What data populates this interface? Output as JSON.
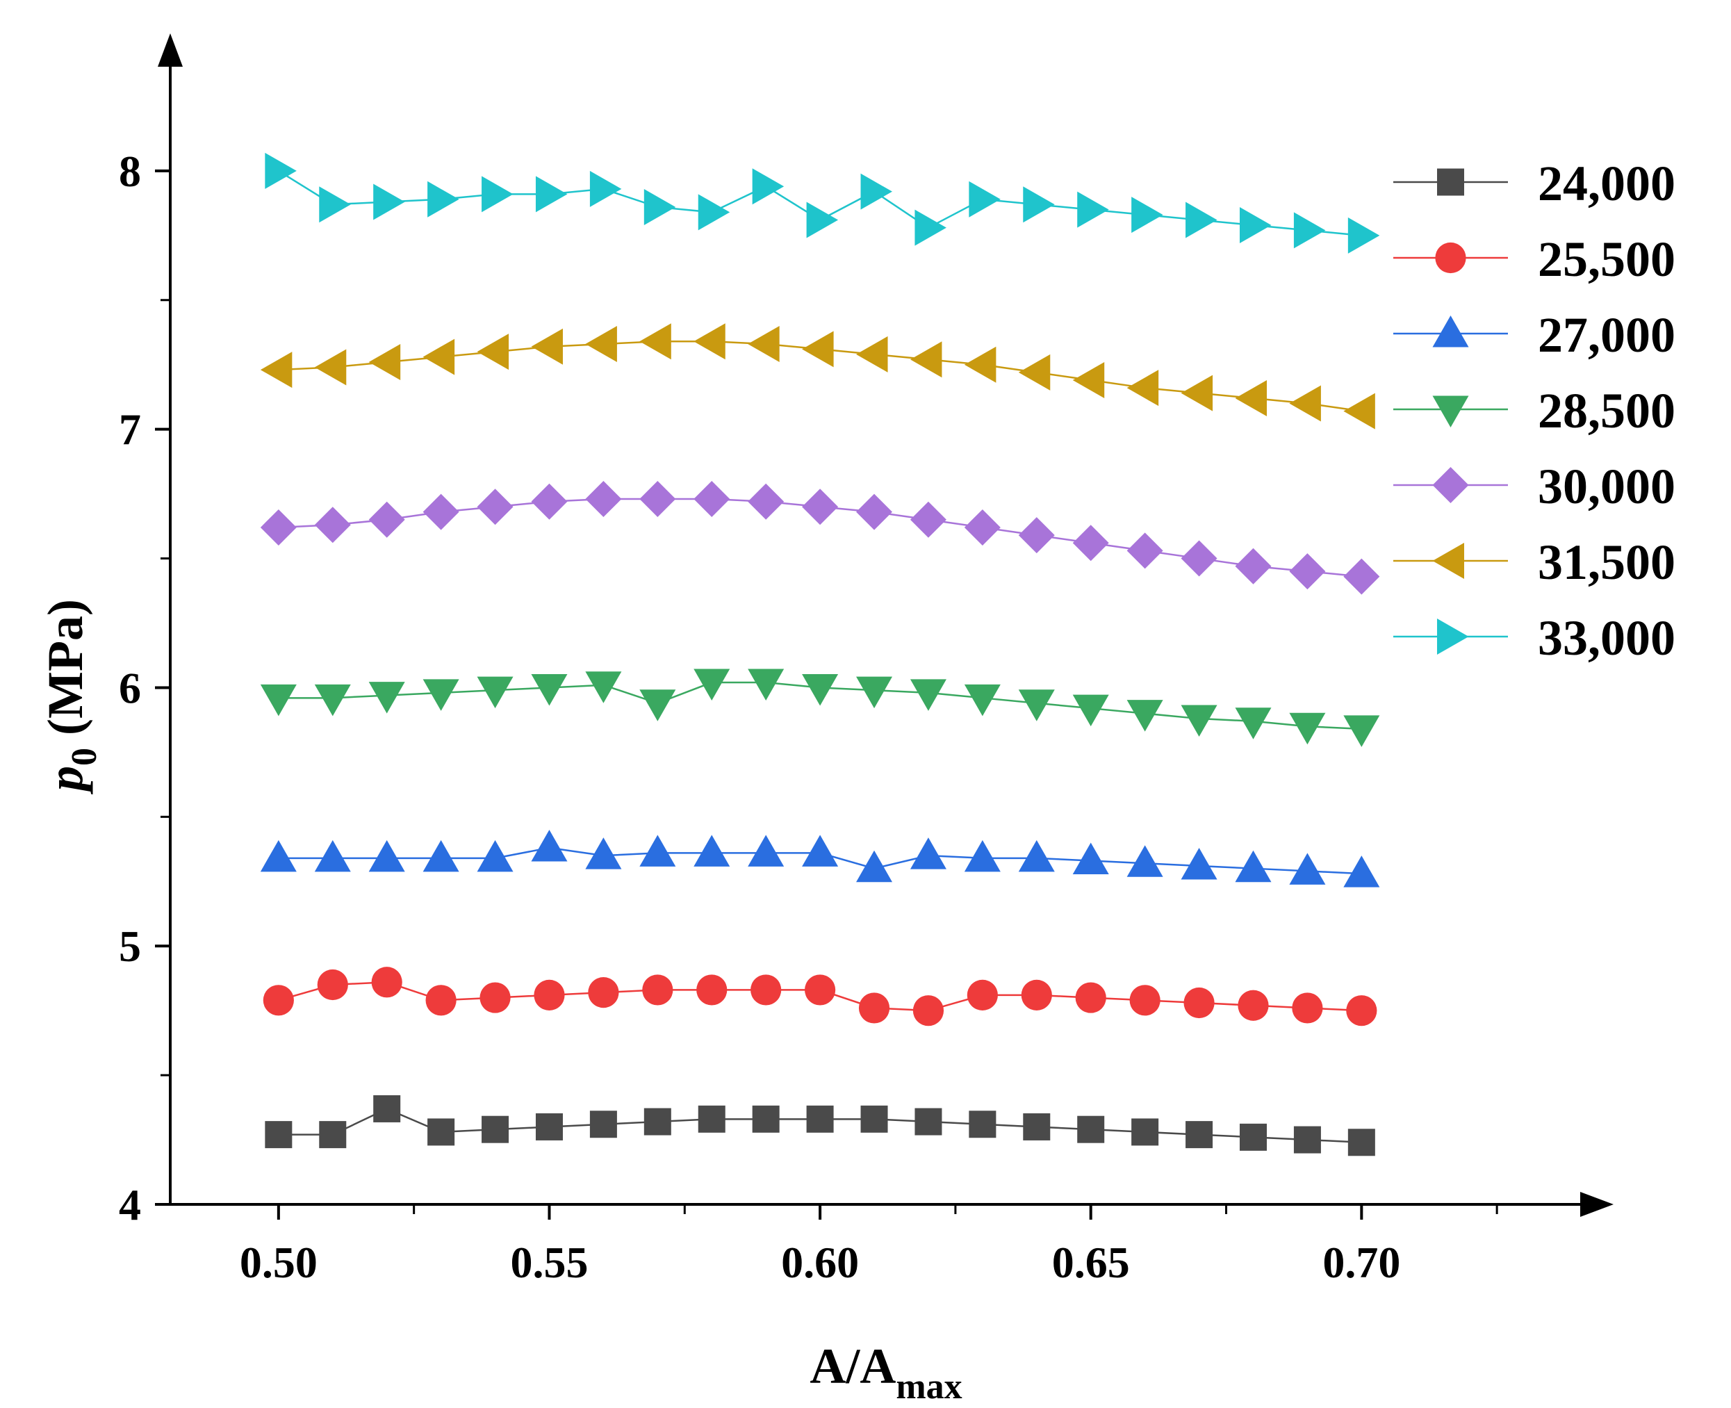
{
  "chart_data": {
    "type": "line",
    "title": "",
    "xlabel": "A/A",
    "xlabel_sub": "max",
    "ylabel": "p",
    "ylabel_sub": "0",
    "ylabel_unit": " (MPa)",
    "xlim": [
      0.48,
      0.745
    ],
    "ylim": [
      4,
      8.5
    ],
    "x_ticks": [
      0.5,
      0.55,
      0.6,
      0.65,
      0.7
    ],
    "x_tick_labels": [
      "0.50",
      "0.55",
      "0.60",
      "0.65",
      "0.70"
    ],
    "y_ticks": [
      4,
      5,
      6,
      7,
      8
    ],
    "y_tick_labels": [
      "4",
      "5",
      "6",
      "7",
      "8"
    ],
    "grid": false,
    "legend_position": "top-right",
    "x": [
      0.5,
      0.51,
      0.52,
      0.53,
      0.54,
      0.55,
      0.56,
      0.57,
      0.58,
      0.59,
      0.6,
      0.61,
      0.62,
      0.63,
      0.64,
      0.65,
      0.66,
      0.67,
      0.68,
      0.69,
      0.7
    ],
    "series": [
      {
        "name": "24,000",
        "marker": "square",
        "color": "#4a4a4a",
        "values": [
          4.27,
          4.27,
          4.37,
          4.28,
          4.29,
          4.3,
          4.31,
          4.32,
          4.33,
          4.33,
          4.33,
          4.33,
          4.32,
          4.31,
          4.3,
          4.29,
          4.28,
          4.27,
          4.26,
          4.25,
          4.24
        ]
      },
      {
        "name": "25,500",
        "marker": "circle",
        "color": "#ee3b3b",
        "values": [
          4.79,
          4.85,
          4.86,
          4.79,
          4.8,
          4.81,
          4.82,
          4.83,
          4.83,
          4.83,
          4.83,
          4.76,
          4.75,
          4.81,
          4.81,
          4.8,
          4.79,
          4.78,
          4.77,
          4.76,
          4.75
        ]
      },
      {
        "name": "27,000",
        "marker": "triangle-up",
        "color": "#2a6ee0",
        "values": [
          5.34,
          5.34,
          5.34,
          5.34,
          5.34,
          5.38,
          5.35,
          5.36,
          5.36,
          5.36,
          5.36,
          5.3,
          5.35,
          5.34,
          5.34,
          5.33,
          5.32,
          5.31,
          5.3,
          5.29,
          5.28
        ]
      },
      {
        "name": "28,500",
        "marker": "triangle-down",
        "color": "#3aa860",
        "values": [
          5.96,
          5.96,
          5.97,
          5.98,
          5.99,
          6.0,
          6.01,
          5.94,
          6.02,
          6.02,
          6.0,
          5.99,
          5.98,
          5.96,
          5.94,
          5.92,
          5.9,
          5.88,
          5.87,
          5.85,
          5.84
        ]
      },
      {
        "name": "30,000",
        "marker": "diamond",
        "color": "#a874d9",
        "values": [
          6.62,
          6.63,
          6.65,
          6.68,
          6.7,
          6.72,
          6.73,
          6.73,
          6.73,
          6.72,
          6.7,
          6.68,
          6.65,
          6.62,
          6.59,
          6.56,
          6.53,
          6.5,
          6.47,
          6.45,
          6.43
        ]
      },
      {
        "name": "31,500",
        "marker": "triangle-left",
        "color": "#c99a10",
        "values": [
          7.23,
          7.24,
          7.26,
          7.28,
          7.3,
          7.32,
          7.33,
          7.34,
          7.34,
          7.33,
          7.31,
          7.29,
          7.27,
          7.25,
          7.22,
          7.19,
          7.16,
          7.14,
          7.12,
          7.1,
          7.07
        ]
      },
      {
        "name": "33,000",
        "marker": "triangle-right",
        "color": "#1fc4cc",
        "values": [
          8.0,
          7.87,
          7.88,
          7.89,
          7.91,
          7.91,
          7.93,
          7.86,
          7.84,
          7.94,
          7.81,
          7.92,
          7.78,
          7.89,
          7.87,
          7.85,
          7.83,
          7.81,
          7.79,
          7.77,
          7.75
        ]
      }
    ]
  }
}
